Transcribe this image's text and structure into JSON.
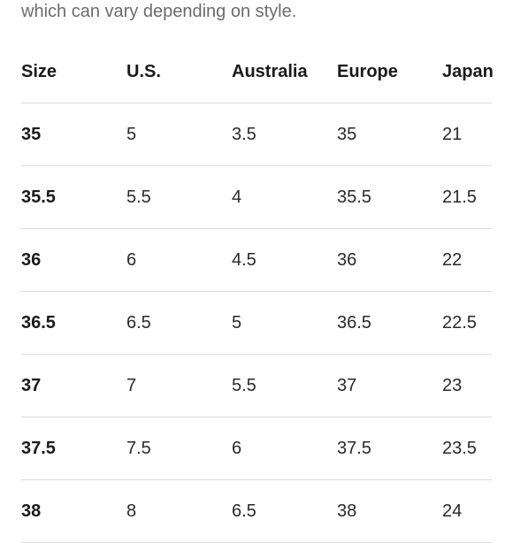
{
  "intro_text": "which can vary depending on style.",
  "table": {
    "headers": [
      "Size",
      "U.S.",
      "Australia",
      "Europe",
      "Japan"
    ],
    "rows": [
      [
        "35",
        "5",
        "3.5",
        "35",
        "21"
      ],
      [
        "35.5",
        "5.5",
        "4",
        "35.5",
        "21.5"
      ],
      [
        "36",
        "6",
        "4.5",
        "36",
        "22"
      ],
      [
        "36.5",
        "6.5",
        "5",
        "36.5",
        "22.5"
      ],
      [
        "37",
        "7",
        "5.5",
        "37",
        "23"
      ],
      [
        "37.5",
        "7.5",
        "6",
        "37.5",
        "23.5"
      ],
      [
        "38",
        "8",
        "6.5",
        "38",
        "24"
      ]
    ]
  },
  "colors": {
    "text": "#1f1f1f",
    "muted_text": "#6b6b6b",
    "divider": "#dcdcdc"
  }
}
